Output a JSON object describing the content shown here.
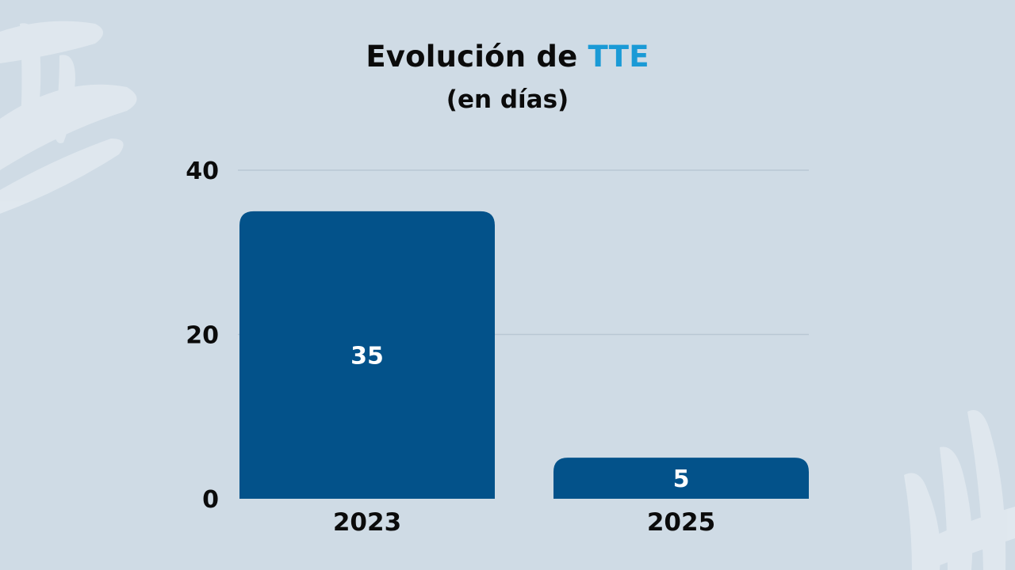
{
  "header": {
    "title_main": "Evolución de",
    "title_accent": "TTE",
    "subtitle": "(en días)"
  },
  "colors": {
    "background": "#cfdbe5",
    "bar": "#03528a",
    "accent": "#1a9ad6",
    "text": "#0b0b0b",
    "data_label": "#ffffff",
    "grid": "#b9c8d4"
  },
  "chart_data": {
    "type": "bar",
    "title": "Evolución de TTE",
    "subtitle": "(en días)",
    "categories": [
      "2023",
      "2025"
    ],
    "values": [
      35,
      5
    ],
    "data_labels": [
      "35",
      "5"
    ],
    "yticks": [
      0,
      20,
      40
    ],
    "ylim": [
      0,
      40
    ],
    "xlabel": "",
    "ylabel": "",
    "grid": true,
    "legend": "none"
  }
}
